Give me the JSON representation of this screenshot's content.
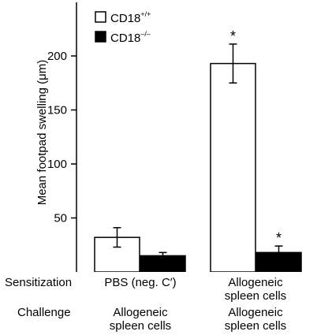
{
  "chart_data": {
    "type": "bar",
    "ylabel_main": "Mean footpad swelling (",
    "ylabel_unit": "μm",
    "ylabel_close": ")",
    "ylim": [
      0,
      250
    ],
    "yticks": [
      50,
      100,
      150,
      200
    ],
    "ytick_labels": [
      "50",
      "100",
      "150",
      "200"
    ],
    "legend_position": "top-left",
    "series": [
      {
        "base": "CD18",
        "sup": "+/+",
        "fill": "#ffffff",
        "values": [
          32,
          193
        ],
        "errors": [
          9,
          18
        ],
        "error_both": [
          true,
          true
        ],
        "significance": [
          "",
          "*"
        ]
      },
      {
        "base": "CD18",
        "sup": "–/–",
        "fill": "#000000",
        "values": [
          15,
          18
        ],
        "errors": [
          3,
          6
        ],
        "error_both": [
          false,
          false
        ],
        "significance": [
          "",
          "*"
        ]
      }
    ],
    "groups": [
      {
        "sensitization": [
          "PBS (neg. C′)"
        ],
        "challenge": [
          "Allogeneic",
          "spleen cells"
        ]
      },
      {
        "sensitization": [
          "Allogeneic",
          "spleen cells"
        ],
        "challenge": [
          "Allogeneic",
          "spleen cells"
        ]
      }
    ]
  },
  "rows": {
    "sensitization_label": "Sensitization",
    "challenge_label": "Challenge"
  }
}
